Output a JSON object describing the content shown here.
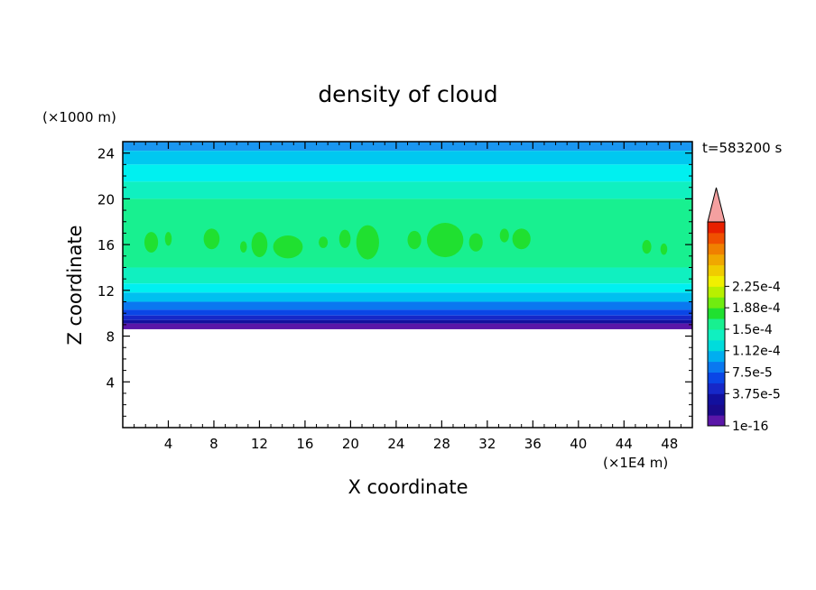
{
  "chart_data": {
    "type": "heatmap",
    "title": "density of cloud",
    "xlabel": "X coordinate",
    "ylabel": "Z coordinate",
    "x_unit": "(×1E4 m)",
    "y_unit": "(×1000 m)",
    "time_label": "t=583200 s",
    "xlim": [
      0,
      50
    ],
    "ylim": [
      0,
      25
    ],
    "x_ticks": [
      4,
      8,
      12,
      16,
      20,
      24,
      28,
      32,
      36,
      40,
      44,
      48
    ],
    "y_ticks": [
      4,
      8,
      12,
      16,
      20,
      24
    ],
    "colorbar": {
      "colors": [
        "#5a16a8",
        "#1a0a8c",
        "#12109e",
        "#1628c8",
        "#0a46e6",
        "#0a78f0",
        "#00aef0",
        "#00dcdc",
        "#10f0c0",
        "#18f090",
        "#20e030",
        "#70ec10",
        "#b8f000",
        "#f0f000",
        "#f0cc00",
        "#f0a800",
        "#f08000",
        "#f05000",
        "#e82000"
      ],
      "labeled_levels": [
        {
          "label": "1e-16",
          "index": 0
        },
        {
          "label": "3.75e-5",
          "index": 3
        },
        {
          "label": "7.5e-5",
          "index": 5
        },
        {
          "label": "1.12e-4",
          "index": 7
        },
        {
          "label": "1.5e-4",
          "index": 9
        },
        {
          "label": "1.88e-4",
          "index": 11
        },
        {
          "label": "2.25e-4",
          "index": 13
        }
      ],
      "extend_color": "#f4a0a0"
    },
    "bands": [
      {
        "z0": 24.2,
        "z1": 25.0,
        "color": "#1a96f0"
      },
      {
        "z0": 23.0,
        "z1": 24.2,
        "color": "#00c8f0"
      },
      {
        "z0": 21.5,
        "z1": 23.0,
        "color": "#00f0f0"
      },
      {
        "z0": 20.0,
        "z1": 21.5,
        "color": "#10f0c0"
      },
      {
        "z0": 14.0,
        "z1": 20.0,
        "color": "#18f090"
      },
      {
        "z0": 12.6,
        "z1": 14.0,
        "color": "#10f0c0"
      },
      {
        "z0": 11.8,
        "z1": 12.6,
        "color": "#00f0f0"
      },
      {
        "z0": 11.0,
        "z1": 11.8,
        "color": "#00c0f0"
      },
      {
        "z0": 10.3,
        "z1": 11.0,
        "color": "#0a78f0"
      },
      {
        "z0": 9.8,
        "z1": 10.3,
        "color": "#0a46e6"
      },
      {
        "z0": 9.4,
        "z1": 9.8,
        "color": "#1628c8"
      },
      {
        "z0": 9.1,
        "z1": 9.4,
        "color": "#12109e"
      },
      {
        "z0": 8.6,
        "z1": 9.1,
        "color": "#5a16a8"
      }
    ],
    "green_patches": [
      {
        "x": 2.5,
        "z": 16.2,
        "rx": 0.6,
        "rz": 0.9
      },
      {
        "x": 4.0,
        "z": 16.5,
        "rx": 0.3,
        "rz": 0.6
      },
      {
        "x": 7.8,
        "z": 16.5,
        "rx": 0.7,
        "rz": 0.9
      },
      {
        "x": 10.6,
        "z": 15.8,
        "rx": 0.3,
        "rz": 0.5
      },
      {
        "x": 12.0,
        "z": 16.0,
        "rx": 0.7,
        "rz": 1.1
      },
      {
        "x": 14.5,
        "z": 15.8,
        "rx": 1.3,
        "rz": 1.0
      },
      {
        "x": 17.6,
        "z": 16.2,
        "rx": 0.4,
        "rz": 0.5
      },
      {
        "x": 19.5,
        "z": 16.5,
        "rx": 0.5,
        "rz": 0.8
      },
      {
        "x": 21.5,
        "z": 16.2,
        "rx": 1.0,
        "rz": 1.5
      },
      {
        "x": 25.6,
        "z": 16.4,
        "rx": 0.6,
        "rz": 0.8
      },
      {
        "x": 28.3,
        "z": 16.4,
        "rx": 1.6,
        "rz": 1.5
      },
      {
        "x": 31.0,
        "z": 16.2,
        "rx": 0.6,
        "rz": 0.8
      },
      {
        "x": 33.5,
        "z": 16.8,
        "rx": 0.4,
        "rz": 0.6
      },
      {
        "x": 35.0,
        "z": 16.5,
        "rx": 0.8,
        "rz": 0.9
      },
      {
        "x": 46.0,
        "z": 15.8,
        "rx": 0.4,
        "rz": 0.6
      },
      {
        "x": 47.5,
        "z": 15.6,
        "rx": 0.3,
        "rz": 0.5
      }
    ]
  }
}
